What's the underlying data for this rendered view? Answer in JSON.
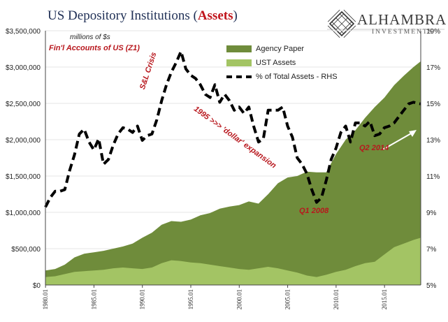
{
  "title": {
    "prefix": "US Depository Institutions (",
    "highlight": "Assets",
    "suffix": ")"
  },
  "logo": {
    "name": "ALHAMBRA",
    "subtitle": "INVESTMENTS",
    "icon": "diamond-lattice-icon"
  },
  "units_note": "millions of $s",
  "source_note": "Fin'l Accounts of US (Z1)",
  "legend": [
    {
      "label": "Agency Paper",
      "color": "#6f8c3b"
    },
    {
      "label": "UST Assets",
      "color": "#a3c464"
    },
    {
      "label": "% of Total Assets - RHS",
      "color": "#000000"
    }
  ],
  "annotations": {
    "sl_crisis": "S&L Crisis",
    "dollar_expansion": "1995 >>> 'dollar' expansion",
    "q1_2008": "Q1 2008",
    "q2_2014": "Q2 2014"
  },
  "colors": {
    "agency": "#6f8c3b",
    "ust": "#a3c464",
    "pct_line": "#000000",
    "annotation": "#b8171d",
    "arrow": "#ffffff"
  },
  "chart_data": {
    "type": "area",
    "x_range": [
      1980.0,
      2018.75
    ],
    "x_ticks": [
      "1980.01",
      "1985.01",
      "1990.01",
      "1995.01",
      "2000.01",
      "2005.01",
      "2010.01",
      "2015.01"
    ],
    "y_left": {
      "min": 0,
      "max": 3500000,
      "ticks": [
        "$0",
        "$500,000",
        "$1,000,000",
        "$1,500,000",
        "$2,000,000",
        "$2,500,000",
        "$3,000,000",
        "$3,500,000"
      ]
    },
    "y_right": {
      "min": 5,
      "max": 21,
      "ticks": [
        "5%",
        "7%",
        "9%",
        "11%",
        "13%",
        "15%",
        "17%",
        "19%"
      ]
    },
    "series": [
      {
        "name": "UST Assets",
        "kind": "area",
        "x": [
          1980,
          1981,
          1982,
          1983,
          1984,
          1985,
          1986,
          1987,
          1988,
          1989,
          1990,
          1991,
          1992,
          1993,
          1994,
          1995,
          1996,
          1997,
          1998,
          1999,
          2000,
          2001,
          2002,
          2003,
          2004,
          2005,
          2006,
          2007,
          2008,
          2009,
          2010,
          2011,
          2012,
          2013,
          2014,
          2015,
          2016,
          2017,
          2018,
          2018.75
        ],
        "values": [
          110000,
          120000,
          150000,
          180000,
          190000,
          200000,
          210000,
          230000,
          240000,
          230000,
          220000,
          240000,
          300000,
          340000,
          330000,
          310000,
          300000,
          280000,
          260000,
          240000,
          220000,
          210000,
          230000,
          250000,
          230000,
          200000,
          170000,
          130000,
          110000,
          140000,
          180000,
          210000,
          260000,
          300000,
          320000,
          420000,
          520000,
          570000,
          620000,
          650000
        ]
      },
      {
        "name": "Agency Paper",
        "kind": "area",
        "x": [
          1980,
          1981,
          1982,
          1983,
          1984,
          1985,
          1986,
          1987,
          1988,
          1989,
          1990,
          1991,
          1992,
          1993,
          1994,
          1995,
          1996,
          1997,
          1998,
          1999,
          2000,
          2001,
          2002,
          2003,
          2004,
          2005,
          2006,
          2007,
          2008,
          2009,
          2010,
          2011,
          2012,
          2013,
          2014,
          2015,
          2016,
          2017,
          2018,
          2018.75
        ],
        "values": [
          200000,
          220000,
          280000,
          380000,
          430000,
          450000,
          470000,
          500000,
          530000,
          570000,
          650000,
          720000,
          830000,
          880000,
          870000,
          900000,
          960000,
          990000,
          1050000,
          1080000,
          1100000,
          1150000,
          1120000,
          1250000,
          1400000,
          1480000,
          1500000,
          1560000,
          1550000,
          1550000,
          1800000,
          2000000,
          2130000,
          2300000,
          2450000,
          2580000,
          2750000,
          2880000,
          3000000,
          3080000
        ]
      },
      {
        "name": "% of Total Assets - RHS",
        "kind": "line",
        "axis": "right",
        "x": [
          1980,
          1980.5,
          1981,
          1981.5,
          1982,
          1982.5,
          1983,
          1983.5,
          1984,
          1984.5,
          1985,
          1985.5,
          1986,
          1986.5,
          1987,
          1987.5,
          1988,
          1988.5,
          1989,
          1989.5,
          1990,
          1990.5,
          1991,
          1991.5,
          1992,
          1992.5,
          1993,
          1993.5,
          1994,
          1994.5,
          1995,
          1995.5,
          1996,
          1996.5,
          1997,
          1997.5,
          1998,
          1998.5,
          1999,
          1999.5,
          2000,
          2000.5,
          2001,
          2001.5,
          2002,
          2002.5,
          2003,
          2003.5,
          2004,
          2004.5,
          2005,
          2005.5,
          2006,
          2006.5,
          2007,
          2007.5,
          2008,
          2008.5,
          2009,
          2009.5,
          2010,
          2010.5,
          2011,
          2011.5,
          2012,
          2012.5,
          2013,
          2013.5,
          2014,
          2014.5,
          2015,
          2015.5,
          2016,
          2016.5,
          2017,
          2017.5,
          2018,
          2018.75
        ],
        "values": [
          9.9,
          10.5,
          10.9,
          10.9,
          11.0,
          12.2,
          13.2,
          14.5,
          14.8,
          14.0,
          13.5,
          14.2,
          12.6,
          12.9,
          13.8,
          14.5,
          14.9,
          14.8,
          14.6,
          15.0,
          14.1,
          14.4,
          14.5,
          15.4,
          16.6,
          17.6,
          18.4,
          19.0,
          19.7,
          18.6,
          18.2,
          18.0,
          17.6,
          17.0,
          16.8,
          17.6,
          16.5,
          17.0,
          16.6,
          16.0,
          16.2,
          15.8,
          16.2,
          15.0,
          14.0,
          14.2,
          16.0,
          16.0,
          16.0,
          16.2,
          15.0,
          14.3,
          13.0,
          12.6,
          12.0,
          11.0,
          10.2,
          10.5,
          11.6,
          12.9,
          13.6,
          14.6,
          15.0,
          14.0,
          15.2,
          15.2,
          15.0,
          15.3,
          14.4,
          14.5,
          14.9,
          15.0,
          15.2,
          15.6,
          16.0,
          16.4,
          16.5,
          16.4
        ]
      }
    ]
  }
}
